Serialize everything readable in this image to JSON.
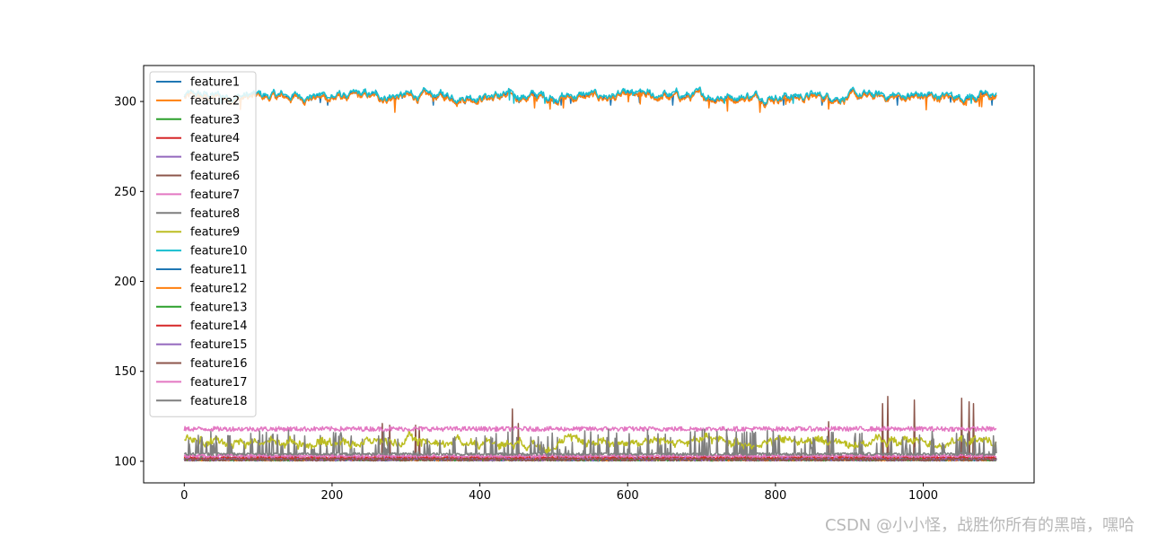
{
  "watermark": "CSDN @小小怪，战胜你所有的黑暗，嘿哈",
  "chart_data": {
    "type": "line",
    "title": "",
    "xlabel": "",
    "ylabel": "",
    "xlim": [
      -55,
      1150
    ],
    "ylim": [
      88,
      320
    ],
    "xticks": [
      0,
      200,
      400,
      600,
      800,
      1000
    ],
    "yticks": [
      100,
      150,
      200,
      250,
      300
    ],
    "grid": false,
    "legend_position": "top-left",
    "n_points": 1100,
    "series": [
      {
        "name": "feature1",
        "color": "#1f77b4",
        "baseline": 302.5,
        "band": [
          298,
          308
        ],
        "style": "high"
      },
      {
        "name": "feature2",
        "color": "#ff7f0e",
        "baseline": 302,
        "band": [
          294,
          307
        ],
        "style": "high"
      },
      {
        "name": "feature3",
        "color": "#2ca02c",
        "baseline": 101,
        "band": [
          100,
          103
        ],
        "style": "flat"
      },
      {
        "name": "feature4",
        "color": "#d62728",
        "baseline": 101.5,
        "band": [
          100,
          104
        ],
        "style": "flat"
      },
      {
        "name": "feature5",
        "color": "#9467bd",
        "baseline": 101,
        "band": [
          100,
          103
        ],
        "style": "flat"
      },
      {
        "name": "feature6",
        "color": "#8c564b",
        "baseline": 101,
        "band": [
          99,
          104
        ],
        "style": "spiky",
        "spikes": [
          [
            268,
            121
          ],
          [
            278,
            120
          ],
          [
            313,
            120
          ],
          [
            318,
            119
          ],
          [
            444,
            129
          ],
          [
            452,
            121
          ],
          [
            872,
            122
          ],
          [
            945,
            132
          ],
          [
            952,
            136
          ],
          [
            988,
            134
          ],
          [
            1052,
            135
          ],
          [
            1062,
            133
          ],
          [
            1068,
            132
          ]
        ]
      },
      {
        "name": "feature7",
        "color": "#e377c2",
        "baseline": 118,
        "band": [
          116,
          120
        ],
        "style": "upper"
      },
      {
        "name": "feature8",
        "color": "#7f7f7f",
        "baseline": 101,
        "band": [
          100,
          118
        ],
        "style": "busy"
      },
      {
        "name": "feature9",
        "color": "#bcbd22",
        "baseline": 111,
        "band": [
          104,
          118
        ],
        "style": "mid"
      },
      {
        "name": "feature10",
        "color": "#17becf",
        "baseline": 303.5,
        "band": [
          299,
          309
        ],
        "style": "high"
      },
      {
        "name": "feature11",
        "color": "#1f77b4",
        "baseline": 101,
        "band": [
          100,
          103
        ],
        "style": "flat"
      },
      {
        "name": "feature12",
        "color": "#ff7f0e",
        "baseline": 101,
        "band": [
          100,
          103
        ],
        "style": "flat"
      },
      {
        "name": "feature13",
        "color": "#2ca02c",
        "baseline": 101,
        "band": [
          100,
          103
        ],
        "style": "flat"
      },
      {
        "name": "feature14",
        "color": "#d62728",
        "baseline": 102,
        "band": [
          100,
          105
        ],
        "style": "flat"
      },
      {
        "name": "feature15",
        "color": "#9467bd",
        "baseline": 101,
        "band": [
          100,
          103
        ],
        "style": "flat"
      },
      {
        "name": "feature16",
        "color": "#8c564b",
        "baseline": 101,
        "band": [
          99,
          104
        ],
        "style": "flat"
      },
      {
        "name": "feature17",
        "color": "#e377c2",
        "baseline": 103,
        "band": [
          101,
          106
        ],
        "style": "flat"
      },
      {
        "name": "feature18",
        "color": "#7f7f7f",
        "baseline": 104,
        "band": [
          100,
          117
        ],
        "style": "busy"
      }
    ]
  }
}
